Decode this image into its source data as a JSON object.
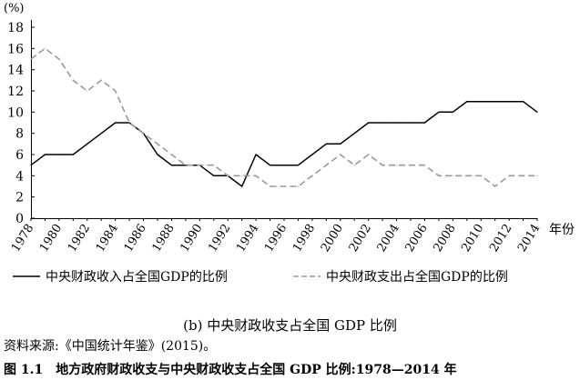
{
  "chart_data": {
    "type": "line",
    "unit_label": "(%)",
    "x_unit_label": "年份",
    "x_tick_labels": [
      "1978",
      "1980",
      "1982",
      "1984",
      "1986",
      "1988",
      "1990",
      "1992",
      "1994",
      "1996",
      "1998",
      "2000",
      "2002",
      "2004",
      "2006",
      "2008",
      "2010",
      "2012",
      "2014"
    ],
    "y_ticks": [
      0,
      2,
      4,
      6,
      8,
      10,
      12,
      14,
      16,
      18
    ],
    "ylim": [
      0,
      18
    ],
    "xlim": [
      1978,
      2014
    ],
    "grid": false,
    "legend_position": "bottom",
    "x": [
      1978,
      1979,
      1980,
      1981,
      1982,
      1983,
      1984,
      1985,
      1986,
      1987,
      1988,
      1989,
      1990,
      1991,
      1992,
      1993,
      1994,
      1995,
      1996,
      1997,
      1998,
      1999,
      2000,
      2001,
      2002,
      2003,
      2004,
      2005,
      2006,
      2007,
      2008,
      2009,
      2010,
      2011,
      2012,
      2013,
      2014
    ],
    "series": [
      {
        "name": "中央财政收入占全国GDP的比例",
        "style": "solid",
        "color": "#000000",
        "values": [
          5,
          6,
          6,
          6,
          7,
          8,
          9,
          9,
          8,
          6,
          5,
          5,
          5,
          4,
          4,
          3,
          6,
          5,
          5,
          5,
          6,
          7,
          7,
          8,
          9,
          9,
          9,
          9,
          9,
          10,
          10,
          11,
          11,
          11,
          11,
          11,
          10
        ]
      },
      {
        "name": "中央财政支出占全国GDP的比例",
        "style": "dashed",
        "color": "#9a9a9a",
        "values": [
          15,
          16,
          15,
          13,
          12,
          13,
          12,
          9,
          8,
          7,
          6,
          5,
          5,
          5,
          4,
          4,
          4,
          3,
          3,
          3,
          4,
          5,
          6,
          5,
          6,
          5,
          5,
          5,
          5,
          4,
          4,
          4,
          4,
          3,
          4,
          4,
          4
        ]
      }
    ]
  },
  "captions": {
    "subcaption": "(b) 中央财政收支占全国 GDP 比例",
    "source": "资料来源:《中国统计年鉴》(2015)。",
    "figure_number": "图 1.1",
    "figure_title": "地方政府财政收支与中央财政收支占全国 GDP 比例:1978—2014 年"
  }
}
